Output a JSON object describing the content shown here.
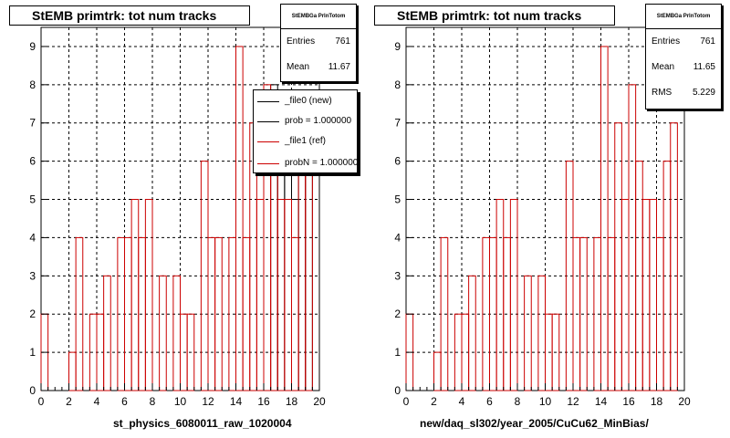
{
  "colors": {
    "ref_hist": "#cc0000",
    "new_hist": "#000000",
    "grid": "#000000",
    "background": "#ffffff"
  },
  "pads": [
    {
      "title": "StEMB primtrk: tot num tracks",
      "stats": {
        "header": "StEMBGa PrlnTotom",
        "rows": [
          {
            "label": "Entries",
            "value": "761"
          },
          {
            "label": "Mean",
            "value": "11.67"
          }
        ]
      },
      "legend": [
        {
          "label": "_file0 (new)",
          "color": "#000000"
        },
        {
          "label": "prob = 1.000000",
          "color": "#000000"
        },
        {
          "label": "_file1 (ref)",
          "color": "#cc0000"
        },
        {
          "label": "probN = 1.000000",
          "color": "#cc0000"
        }
      ],
      "xlabel": "st_physics_6080011_raw_1020004"
    },
    {
      "title": "StEMB primtrk: tot num tracks",
      "stats": {
        "header": "StEMBGa PrlnTotom",
        "rows": [
          {
            "label": "Entries",
            "value": "761"
          },
          {
            "label": "Mean",
            "value": "11.65"
          },
          {
            "label": "RMS",
            "value": "5.229"
          }
        ]
      },
      "legend": [],
      "xlabel": "new/daq_sl302/year_2005/CuCu62_MinBias/"
    }
  ],
  "chart_data": [
    {
      "type": "bar",
      "title": "StEMB primtrk: tot num tracks",
      "xlabel": "st_physics_6080011_raw_1020004",
      "ylabel": "",
      "xlim": [
        0,
        20
      ],
      "ylim": [
        0,
        9.5
      ],
      "x_ticks": [
        0,
        2,
        4,
        6,
        8,
        10,
        12,
        14,
        16,
        18,
        20
      ],
      "y_ticks": [
        0,
        1,
        2,
        3,
        4,
        5,
        6,
        7,
        8,
        9
      ],
      "grid": true,
      "legend_position": "top-right",
      "bin_width": 0.5,
      "series": [
        {
          "name": "_file0 (new)",
          "x": [
            16.5,
            17.0,
            17.5,
            18.0,
            18.5,
            19.0
          ],
          "values": [
            8,
            6,
            6,
            5,
            6,
            6
          ]
        },
        {
          "name": "_file1 (ref)",
          "x": [
            0.0,
            2.0,
            2.5,
            3.5,
            4.0,
            4.5,
            5.5,
            6.0,
            6.5,
            7.0,
            7.5,
            8.5,
            9.5,
            10.0,
            10.5,
            11.5,
            12.0,
            12.5,
            13.5,
            14.0,
            14.5,
            15.0,
            15.5,
            16.0,
            16.5,
            17.0,
            17.5,
            18.0,
            18.5,
            19.0
          ],
          "values": [
            2,
            1,
            4,
            2,
            2,
            3,
            4,
            4,
            5,
            4,
            5,
            3,
            3,
            2,
            2,
            6,
            4,
            4,
            4,
            9,
            4,
            7,
            5,
            8,
            6,
            5,
            5,
            4,
            6,
            6
          ]
        }
      ]
    },
    {
      "type": "bar",
      "title": "StEMB primtrk: tot num tracks",
      "xlabel": "new/daq_sl302/year_2005/CuCu62_MinBias/",
      "ylabel": "",
      "xlim": [
        0,
        20
      ],
      "ylim": [
        0,
        9.5
      ],
      "x_ticks": [
        0,
        2,
        4,
        6,
        8,
        10,
        12,
        14,
        16,
        18,
        20
      ],
      "y_ticks": [
        0,
        1,
        2,
        3,
        4,
        5,
        6,
        7,
        8,
        9
      ],
      "grid": true,
      "bin_width": 0.5,
      "series": [
        {
          "name": "",
          "x": [
            0.0,
            2.0,
            2.5,
            3.5,
            4.0,
            4.5,
            5.5,
            6.0,
            6.5,
            7.0,
            7.5,
            8.5,
            9.5,
            10.0,
            10.5,
            11.5,
            12.0,
            12.5,
            13.5,
            14.0,
            14.5,
            15.0,
            15.5,
            16.0,
            16.5,
            17.0,
            17.5,
            18.0,
            18.5,
            19.0
          ],
          "values": [
            2,
            1,
            4,
            2,
            2,
            3,
            4,
            4,
            5,
            4,
            5,
            3,
            3,
            2,
            2,
            6,
            4,
            4,
            4,
            9,
            4,
            7,
            5,
            8,
            6,
            5,
            5,
            4,
            6,
            7
          ]
        }
      ]
    }
  ]
}
